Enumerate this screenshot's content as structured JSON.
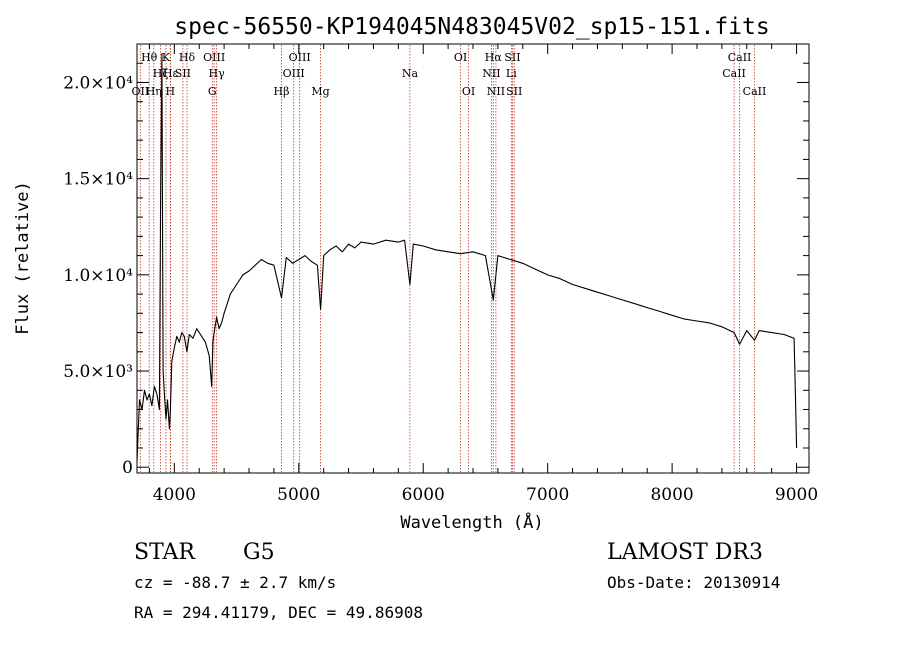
{
  "chart_data": {
    "type": "line",
    "title": "spec-56550-KP194045N483045V02_sp15-151.fits",
    "xlabel": "Wavelength (Å)",
    "ylabel": "Flux (relative)",
    "xlim": [
      3700,
      9100
    ],
    "ylim": [
      -300,
      22000
    ],
    "x_ticks": [
      4000,
      5000,
      6000,
      7000,
      8000,
      9000
    ],
    "x_tick_labels": [
      "4000",
      "5000",
      "6000",
      "7000",
      "8000",
      "9000"
    ],
    "y_ticks": [
      0,
      5000,
      10000,
      15000,
      20000
    ],
    "y_tick_labels": [
      "0",
      "5.0×10³",
      "1.0×10⁴",
      "1.5×10⁴",
      "2.0×10⁴"
    ],
    "series": [
      {
        "name": "spectrum",
        "color": "#000000",
        "x": [
          3700,
          3720,
          3740,
          3760,
          3780,
          3800,
          3820,
          3840,
          3860,
          3880,
          3890,
          3900,
          3910,
          3920,
          3933,
          3945,
          3960,
          3968,
          3980,
          4000,
          4020,
          4040,
          4060,
          4080,
          4101,
          4120,
          4150,
          4180,
          4200,
          4220,
          4250,
          4280,
          4300,
          4310,
          4320,
          4340,
          4360,
          4380,
          4400,
          4450,
          4500,
          4550,
          4600,
          4650,
          4700,
          4750,
          4800,
          4861,
          4900,
          4950,
          5000,
          5050,
          5100,
          5150,
          5175,
          5200,
          5250,
          5300,
          5350,
          5400,
          5450,
          5500,
          5600,
          5700,
          5800,
          5850,
          5893,
          5920,
          6000,
          6100,
          6200,
          6300,
          6400,
          6500,
          6563,
          6600,
          6700,
          6800,
          6900,
          7000,
          7100,
          7200,
          7300,
          7400,
          7500,
          7600,
          7700,
          7800,
          7900,
          8000,
          8100,
          8200,
          8300,
          8400,
          8498,
          8542,
          8600,
          8662,
          8700,
          8800,
          8900,
          8980,
          8990,
          9000
        ],
        "y": [
          300,
          3500,
          3000,
          4000,
          3500,
          3800,
          3200,
          4200,
          3800,
          3000,
          13800,
          21500,
          5000,
          3800,
          2500,
          3500,
          2000,
          3000,
          5500,
          6200,
          6800,
          6500,
          7000,
          6800,
          6000,
          6900,
          6700,
          7200,
          7000,
          6800,
          6500,
          5800,
          4200,
          6500,
          7000,
          7800,
          7200,
          7500,
          8000,
          9000,
          9500,
          10000,
          10200,
          10500,
          10800,
          10600,
          10500,
          8800,
          10900,
          10600,
          10800,
          11000,
          10700,
          10500,
          8200,
          11000,
          11300,
          11500,
          11200,
          11600,
          11400,
          11700,
          11600,
          11800,
          11700,
          11800,
          9500,
          11600,
          11500,
          11300,
          11200,
          11100,
          11200,
          11000,
          8700,
          11000,
          10800,
          10600,
          10300,
          10000,
          9800,
          9500,
          9300,
          9100,
          8900,
          8700,
          8500,
          8300,
          8100,
          7900,
          7700,
          7600,
          7500,
          7300,
          7000,
          6400,
          7100,
          6600,
          7100,
          7000,
          6900,
          6700,
          4000,
          1000
        ]
      }
    ],
    "lines": [
      {
        "label": "OII",
        "x": 3727,
        "row": 3
      },
      {
        "label": "Hθ",
        "x": 3798,
        "row": 1
      },
      {
        "label": "Hη",
        "x": 3835,
        "row": 3
      },
      {
        "label": "Hζ",
        "x": 3889,
        "row": 2
      },
      {
        "label": "K",
        "x": 3933,
        "row": 1
      },
      {
        "label": "Hε",
        "x": 3970,
        "row": 2
      },
      {
        "label": "H",
        "x": 3968,
        "row": 3
      },
      {
        "label": "SII",
        "x": 4069,
        "row": 2
      },
      {
        "label": "Hδ",
        "x": 4102,
        "row": 1
      },
      {
        "label": "OIII",
        "x": 4320,
        "row": 1
      },
      {
        "label": "Hγ",
        "x": 4340,
        "row": 2
      },
      {
        "label": "G",
        "x": 4305,
        "row": 3
      },
      {
        "label": "Hβ",
        "x": 4861,
        "row": 3
      },
      {
        "label": "OIII",
        "x": 4959,
        "row": 2
      },
      {
        "label": "OIII",
        "x": 5007,
        "row": 1
      },
      {
        "label": "Mg",
        "x": 5175,
        "row": 3
      },
      {
        "label": "Na",
        "x": 5893,
        "row": 2
      },
      {
        "label": "OI",
        "x": 6300,
        "row": 1
      },
      {
        "label": "OI",
        "x": 6364,
        "row": 3
      },
      {
        "label": "NII",
        "x": 6548,
        "row": 2
      },
      {
        "label": "Hα",
        "x": 6563,
        "row": 1
      },
      {
        "label": "NII",
        "x": 6584,
        "row": 3
      },
      {
        "label": "Li",
        "x": 6708,
        "row": 2
      },
      {
        "label": "SII",
        "x": 6717,
        "row": 1
      },
      {
        "label": "SII",
        "x": 6731,
        "row": 3
      },
      {
        "label": "CaII",
        "x": 8498,
        "row": 2
      },
      {
        "label": "CaII",
        "x": 8542,
        "row": 1
      },
      {
        "label": "CaII",
        "x": 8662,
        "row": 3
      }
    ]
  },
  "info": {
    "object_class": "STAR",
    "subclass": "G5",
    "redshift": "cz = -88.7 ± 2.7 km/s",
    "coords": "RA = 294.41179, DEC =  49.86908",
    "survey": "LAMOST DR3",
    "obs_date": "Obs-Date: 20130914"
  }
}
